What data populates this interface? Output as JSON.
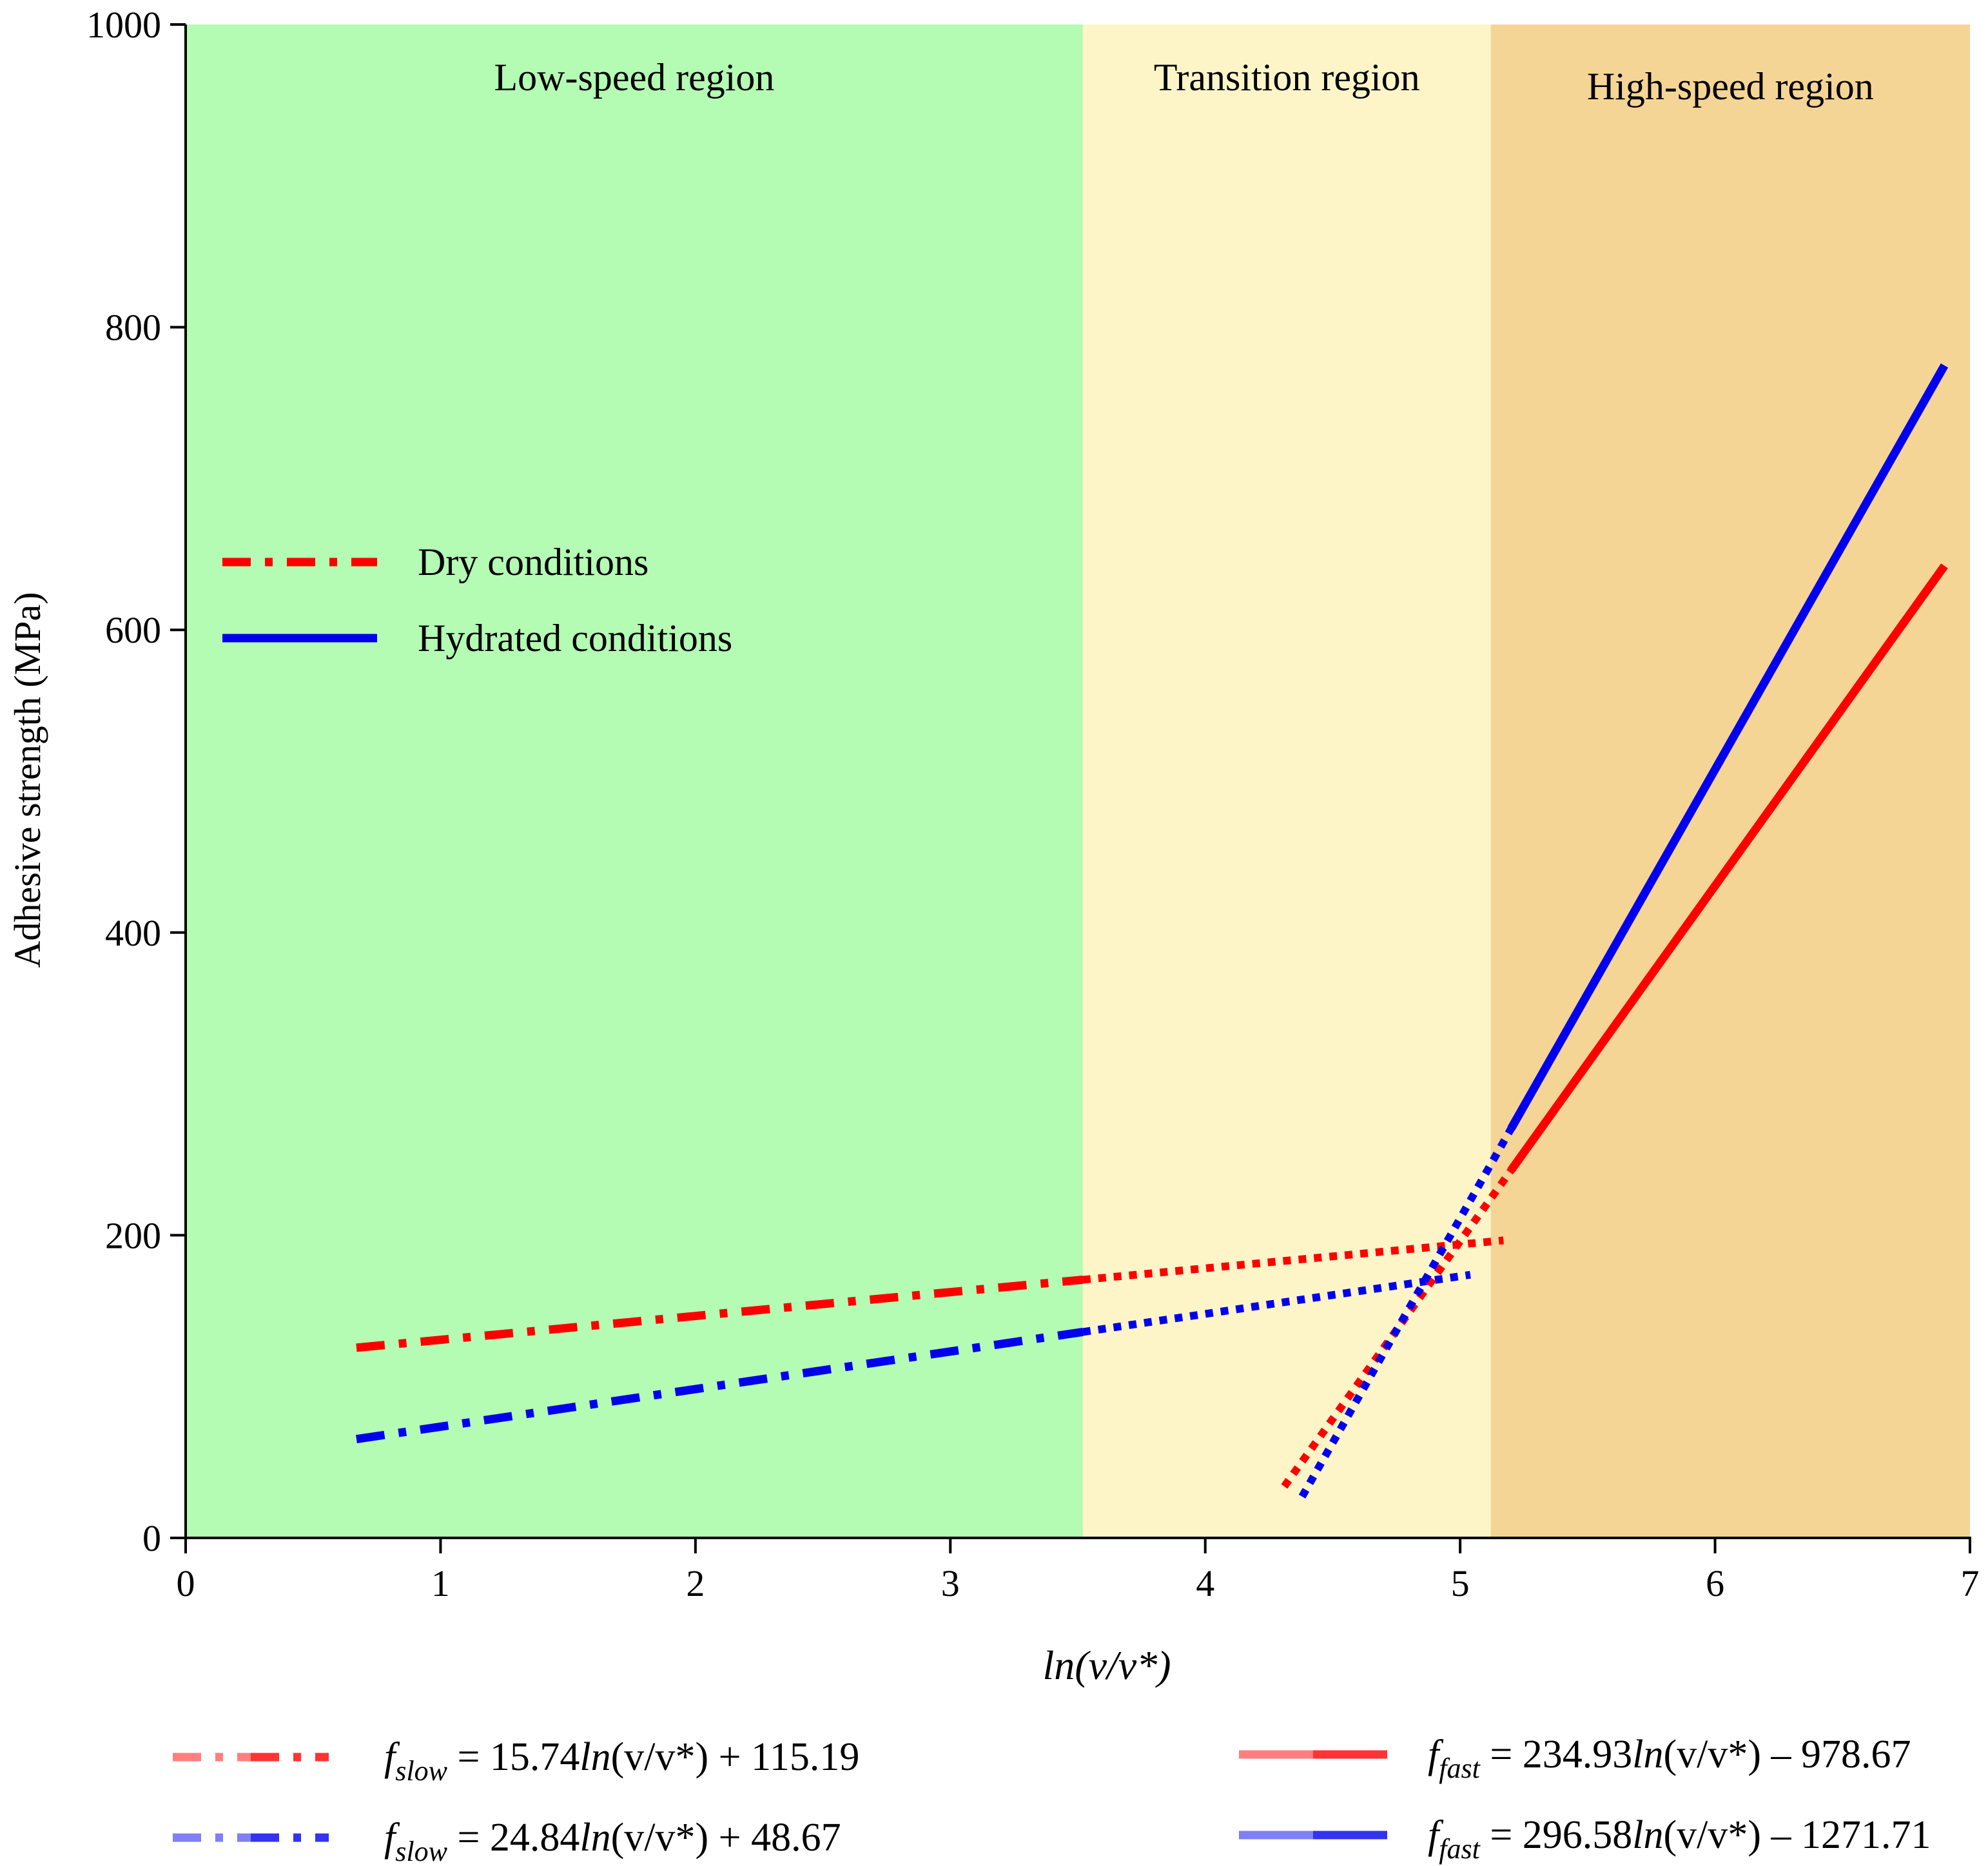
{
  "chart_data": {
    "type": "line",
    "title": "",
    "xlabel": "ln(v/v*)",
    "ylabel": "Adhesive strength (MPa)",
    "xlim": [
      0,
      7
    ],
    "ylim": [
      0,
      1000
    ],
    "x_ticks": [
      "0",
      "1",
      "2",
      "3",
      "4",
      "5",
      "6",
      "7"
    ],
    "y_ticks": [
      "0",
      "200",
      "400",
      "600",
      "800",
      "1000"
    ],
    "regions": [
      {
        "name": "Low-speed region",
        "x_start": 0,
        "x_end": 3.52,
        "color": "#b4fbb4"
      },
      {
        "name": "Transition region",
        "x_start": 3.52,
        "x_end": 5.12,
        "color": "#fdf5c8"
      },
      {
        "name": "High-speed region",
        "x_start": 5.12,
        "x_end": 7,
        "color": "#f5d596"
      }
    ],
    "series": [
      {
        "name": "Dry conditions - slow fit",
        "condition": "dry",
        "style": "dash-dot",
        "color": "#ff0000",
        "x": [
          0.67,
          3.52
        ],
        "y": [
          125.7,
          170.6
        ],
        "extrapolated": {
          "x": [
            3.52,
            5.17
          ],
          "y": [
            170.6,
            196.6
          ]
        }
      },
      {
        "name": "Hydrated conditions - slow fit",
        "condition": "hydrated",
        "style": "dash-dot",
        "color": "#0000ee",
        "x": [
          0.67,
          3.52
        ],
        "y": [
          65.3,
          136.1
        ],
        "extrapolated": {
          "x": [
            3.52,
            5.04
          ],
          "y": [
            136.1,
            173.9
          ]
        }
      },
      {
        "name": "Dry conditions - fast fit",
        "condition": "dry",
        "style": "solid",
        "color": "#ff0000",
        "x": [
          5.2,
          6.9
        ],
        "y": [
          243.0,
          642.3
        ],
        "extrapolated": {
          "x": [
            4.31,
            5.2
          ],
          "y": [
            34.0,
            243.0
          ]
        }
      },
      {
        "name": "Hydrated conditions - fast fit",
        "condition": "hydrated",
        "style": "solid",
        "color": "#0000ee",
        "x": [
          5.2,
          6.9
        ],
        "y": [
          270.5,
          774.7
        ],
        "extrapolated": {
          "x": [
            4.38,
            5.2
          ],
          "y": [
            27.3,
            270.5
          ]
        }
      }
    ],
    "legend": {
      "placement": "upper-left",
      "items": [
        {
          "label": "Dry conditions",
          "style": "dash-dot",
          "color": "#ff0000"
        },
        {
          "label": "Hydrated conditions",
          "style": "solid",
          "color": "#0000ee"
        }
      ]
    },
    "equations": [
      {
        "f": "f",
        "sub": "slow",
        "text": " = 15.74",
        "ln": "ln",
        "arg": "(v/v*)",
        "rest": " + 115.19",
        "style": "dash-dot",
        "color": "#ff0000"
      },
      {
        "f": "f",
        "sub": "slow",
        "text": " = 24.84",
        "ln": "ln",
        "arg": "(v/v*)",
        "rest": " + 48.67",
        "style": "dash-dot",
        "color": "#0000ee"
      },
      {
        "f": "f",
        "sub": "fast",
        "text": " = 234.93",
        "ln": "ln",
        "arg": "(v/v*)",
        "rest": "  – 978.67",
        "style": "solid",
        "color": "#ff0000"
      },
      {
        "f": "f",
        "sub": "fast",
        "text": " = 296.58",
        "ln": "ln",
        "arg": "(v/v*)",
        "rest": " – 1271.71",
        "style": "solid",
        "color": "#0000ee"
      }
    ]
  }
}
